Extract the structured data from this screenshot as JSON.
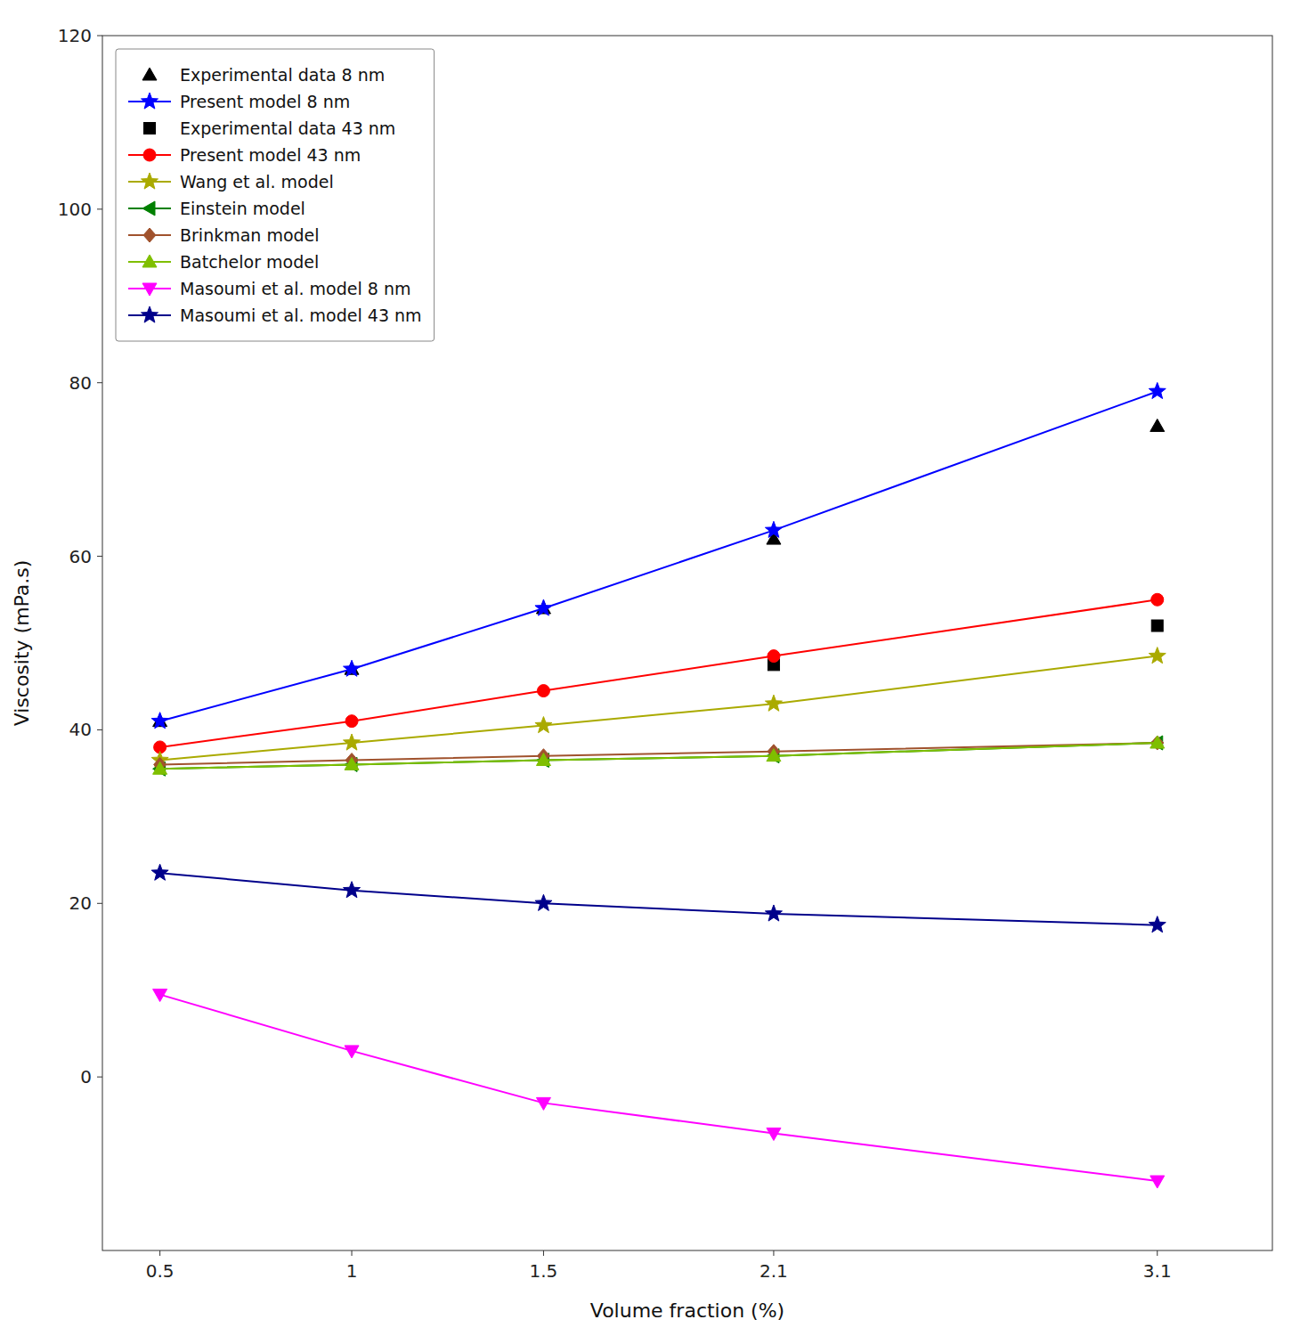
{
  "chart_data": {
    "type": "line",
    "x": [
      0.5,
      1,
      1.5,
      2.1,
      3.1
    ],
    "xlabel": "Volume fraction (%)",
    "ylabel": "Viscosity (mPa.s)",
    "xlim": [
      0.35,
      3.4
    ],
    "ylim": [
      -20,
      120
    ],
    "xticks": [
      0.5,
      1,
      1.5,
      2.1,
      3.1
    ],
    "yticks": [
      0,
      20,
      40,
      60,
      80,
      100,
      120
    ],
    "grid": false,
    "legend": "upper left",
    "series": [
      {
        "name": "Experimental data 8 nm",
        "color": "#000000",
        "marker": "triangle-up",
        "line_style": "none",
        "values": [
          41.0,
          47.0,
          54.0,
          62.0,
          75.0
        ]
      },
      {
        "name": "Present model 8 nm",
        "color": "#0000FF",
        "marker": "star",
        "line_style": "solid",
        "values": [
          41.0,
          47.0,
          54.0,
          63.0,
          79.0
        ]
      },
      {
        "name": "Experimental data 43 nm",
        "color": "#000000",
        "marker": "square",
        "line_style": "none",
        "values": [
          null,
          null,
          null,
          47.5,
          52.0
        ]
      },
      {
        "name": "Present model 43 nm",
        "color": "#FF0000",
        "marker": "circle",
        "line_style": "solid",
        "values": [
          38.0,
          41.0,
          44.5,
          48.5,
          55.0
        ]
      },
      {
        "name": "Wang et al. model",
        "color": "#AAAA00",
        "marker": "star",
        "line_style": "solid",
        "values": [
          36.5,
          38.5,
          40.5,
          43.0,
          48.5
        ]
      },
      {
        "name": "Einstein model",
        "color": "#008000",
        "marker": "triangle-left",
        "line_style": "solid",
        "values": [
          35.5,
          36.0,
          36.5,
          37.0,
          38.5
        ]
      },
      {
        "name": "Brinkman model",
        "color": "#A0522D",
        "marker": "diamond",
        "line_style": "solid",
        "values": [
          36.0,
          36.5,
          37.0,
          37.5,
          38.5
        ]
      },
      {
        "name": "Batchelor model",
        "color": "#7FBF00",
        "marker": "triangle-up",
        "line_style": "solid",
        "values": [
          35.5,
          36.0,
          36.5,
          37.0,
          38.5
        ]
      },
      {
        "name": "Masoumi et al. model 8 nm",
        "color": "#FF00FF",
        "marker": "triangle-down",
        "line_style": "solid",
        "values": [
          9.5,
          3.0,
          -3.0,
          -6.5,
          -12.0
        ]
      },
      {
        "name": "Masoumi et al. model 43 nm",
        "color": "#00008B",
        "marker": "star",
        "line_style": "solid",
        "values": [
          23.5,
          21.5,
          20.0,
          18.8,
          17.5
        ]
      }
    ]
  }
}
